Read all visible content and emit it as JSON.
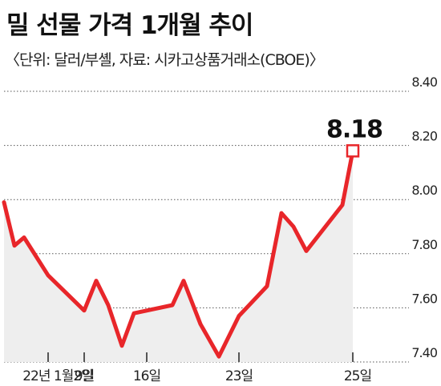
{
  "title": "밀 선물 가격 1개월 추이",
  "subtitle": "〈단위: 달러/부셸, 자료: 시카고상품거래소(CBOE)〉",
  "chart_data": {
    "type": "area",
    "title": "밀 선물 가격 1개월 추이",
    "unit": "달러/부셸",
    "source": "시카고상품거래소(CBOE)",
    "ylim": [
      7.4,
      8.4
    ],
    "yticks": [
      "8.40",
      "8.20",
      "8.00",
      "7.80",
      "7.60",
      "7.40"
    ],
    "xticks": [
      "22년 1월2일",
      "9일",
      "16일",
      "23일",
      "25일"
    ],
    "values": [
      7.99,
      7.83,
      7.86,
      7.72,
      7.59,
      7.7,
      7.61,
      7.46,
      7.58,
      7.61,
      7.7,
      7.54,
      7.42,
      7.57,
      7.68,
      7.95,
      7.9,
      7.81,
      7.98,
      8.18
    ],
    "highlight": {
      "index": 19,
      "label": "8.18"
    },
    "colors": {
      "line": "#e8262a",
      "area": "#eeeeee",
      "marker_fill": "#ffffff"
    },
    "grid": true
  }
}
